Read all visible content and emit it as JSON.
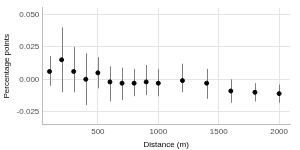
{
  "chart_data": {
    "type": "scatter",
    "x_label": "Distance (m)",
    "y_label": "Percentage points",
    "x": [
      100,
      200,
      300,
      400,
      500,
      600,
      700,
      800,
      900,
      1000,
      1200,
      1400,
      1600,
      1800,
      2000
    ],
    "values": [
      0.006,
      0.015,
      0.006,
      0.0,
      0.005,
      -0.002,
      -0.003,
      -0.003,
      -0.002,
      -0.003,
      -0.001,
      -0.003,
      -0.009,
      -0.01,
      -0.011
    ],
    "lower": [
      -0.005,
      -0.01,
      -0.01,
      -0.02,
      -0.007,
      -0.017,
      -0.016,
      -0.013,
      -0.012,
      -0.013,
      -0.01,
      -0.015,
      -0.018,
      -0.017,
      -0.018
    ],
    "upper": [
      0.018,
      0.04,
      0.025,
      0.02,
      0.017,
      0.01,
      0.009,
      0.008,
      0.011,
      0.008,
      0.012,
      0.008,
      0.0,
      -0.003,
      -0.004
    ],
    "color": "#000000",
    "marker": "circle",
    "xlim": [
      40,
      2090
    ],
    "xticks": [
      500,
      1000,
      1500,
      2000
    ],
    "ylim": [
      -0.035,
      0.055
    ],
    "yticks": [
      {
        "value": -0.025,
        "label": "-0.025"
      },
      {
        "value": 0.0,
        "label": "0.000"
      },
      {
        "value": 0.025,
        "label": "0.025"
      },
      {
        "value": 0.05,
        "label": "0.050"
      }
    ],
    "grid": true
  }
}
